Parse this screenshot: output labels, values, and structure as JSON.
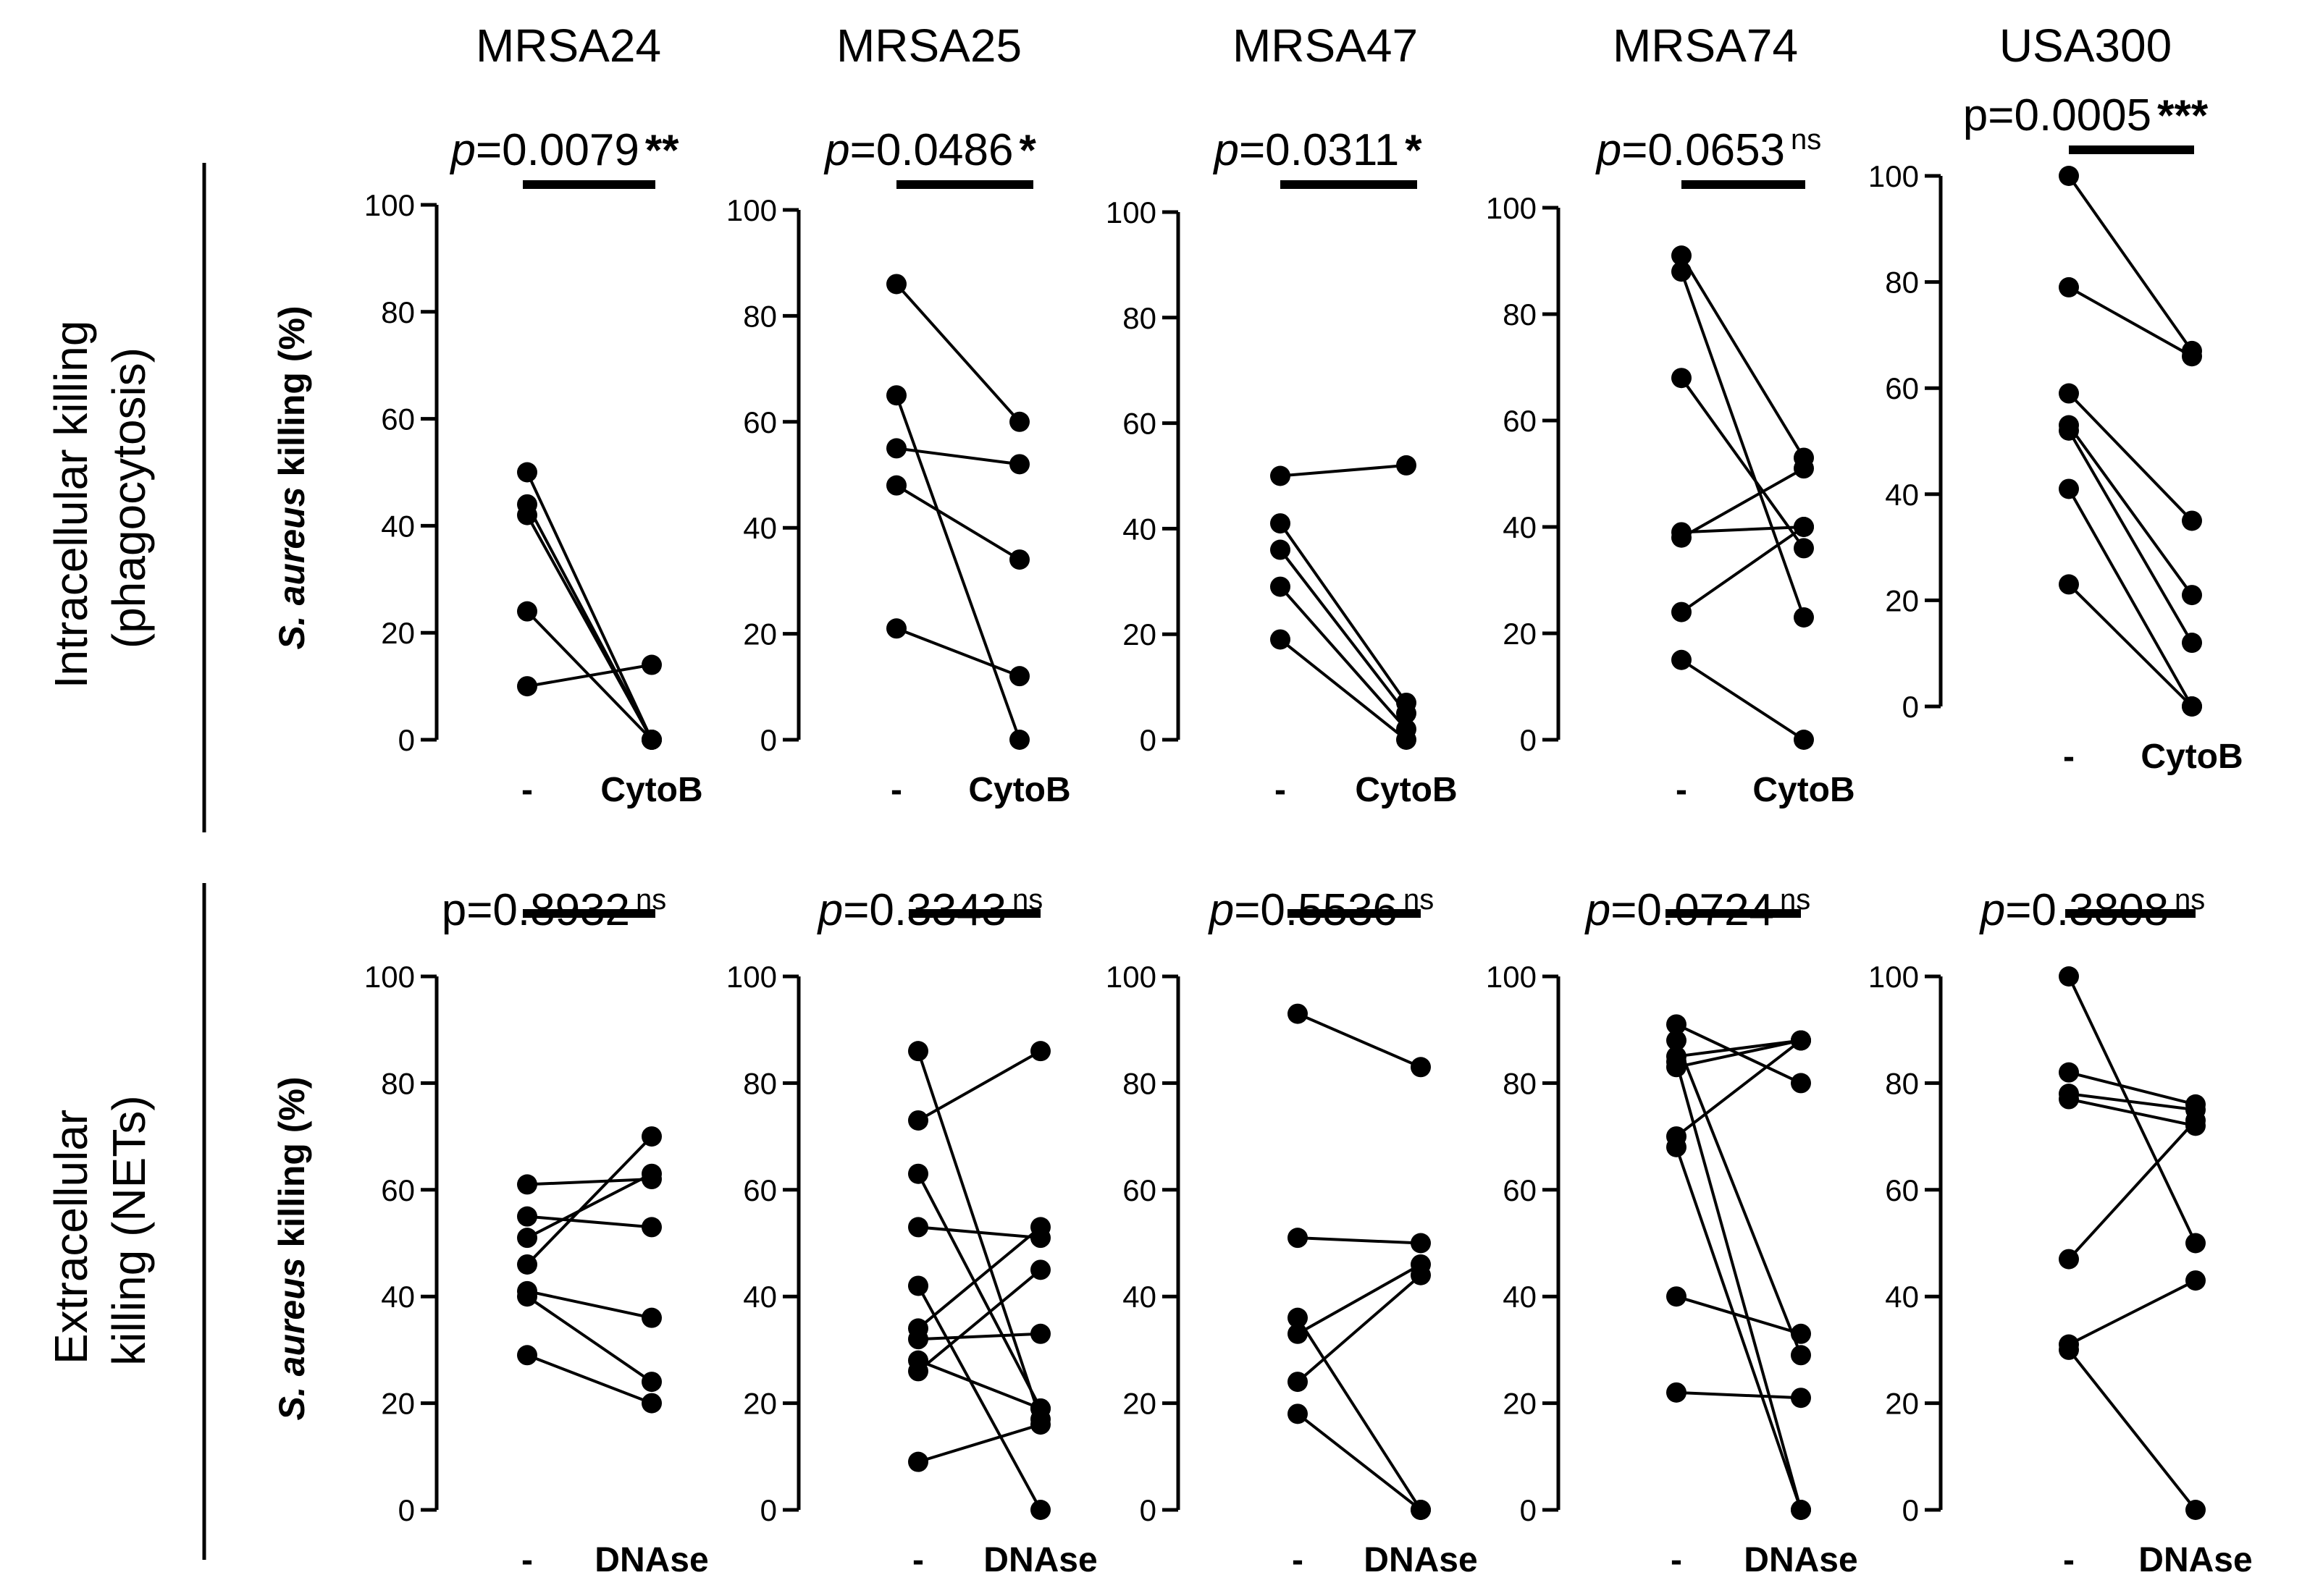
{
  "figure": {
    "strains": [
      "MRSA24",
      "MRSA25",
      "MRSA47",
      "MRSA74",
      "USA300"
    ],
    "rows": [
      {
        "row_label_lines": [
          "Intracellular killing",
          "(phagocytosis)"
        ],
        "y_axis_label": {
          "italic": "S. aureus",
          "rest": " killing (%)"
        },
        "treatment": "CytoB"
      },
      {
        "row_label_lines": [
          "Extracellular",
          "killing (NETs)"
        ],
        "y_axis_label": {
          "italic": "S. aureus",
          "rest": " killing  (%)"
        },
        "treatment": "DNAse"
      }
    ]
  },
  "chart_data": [
    {
      "type": "scatter",
      "subtype": "paired-dot",
      "strain": "MRSA24",
      "row": "Intracellular killing (phagocytosis)",
      "categories": [
        "-",
        "CytoB"
      ],
      "ylabel": "S. aureus killing (%)",
      "ylim": [
        0,
        100
      ],
      "yticks": [
        0,
        20,
        40,
        60,
        80,
        100
      ],
      "p_prefix": "p",
      "p_value": "=0.0079",
      "significance": "**",
      "p_italic": true,
      "pairs": [
        [
          50,
          0
        ],
        [
          44,
          0
        ],
        [
          42,
          0
        ],
        [
          24,
          0
        ],
        [
          10,
          14
        ]
      ]
    },
    {
      "type": "scatter",
      "subtype": "paired-dot",
      "strain": "MRSA25",
      "row": "Intracellular killing (phagocytosis)",
      "categories": [
        "-",
        "CytoB"
      ],
      "ylabel": "S. aureus killing (%)",
      "ylim": [
        0,
        100
      ],
      "yticks": [
        0,
        20,
        40,
        60,
        80,
        100
      ],
      "p_prefix": "p",
      "p_value": "=0.0486",
      "significance": "*",
      "p_italic": true,
      "pairs": [
        [
          86,
          60
        ],
        [
          65,
          0
        ],
        [
          55,
          52
        ],
        [
          48,
          34
        ],
        [
          21,
          12
        ]
      ]
    },
    {
      "type": "scatter",
      "subtype": "paired-dot",
      "strain": "MRSA47",
      "row": "Intracellular killing (phagocytosis)",
      "categories": [
        "-",
        "CytoB"
      ],
      "ylabel": "S. aureus killing (%)",
      "ylim": [
        0,
        100
      ],
      "yticks": [
        0,
        20,
        40,
        60,
        80,
        100
      ],
      "p_prefix": "p",
      "p_value": "=0.0311",
      "significance": "*",
      "p_italic": true,
      "pairs": [
        [
          50,
          52
        ],
        [
          41,
          7
        ],
        [
          36,
          5
        ],
        [
          29,
          2
        ],
        [
          19,
          0
        ]
      ]
    },
    {
      "type": "scatter",
      "subtype": "paired-dot",
      "strain": "MRSA74",
      "row": "Intracellular killing (phagocytosis)",
      "categories": [
        "-",
        "CytoB"
      ],
      "ylabel": "S. aureus killing (%)",
      "ylim": [
        0,
        100
      ],
      "yticks": [
        0,
        20,
        40,
        60,
        80,
        100
      ],
      "p_prefix": "p",
      "p_value": "=0.0653",
      "significance": "ns",
      "p_italic": true,
      "pairs": [
        [
          91,
          53
        ],
        [
          88,
          23
        ],
        [
          68,
          36
        ],
        [
          39,
          40
        ],
        [
          38,
          51
        ],
        [
          24,
          40
        ],
        [
          15,
          0
        ]
      ]
    },
    {
      "type": "scatter",
      "subtype": "paired-dot",
      "strain": "USA300",
      "row": "Intracellular killing (phagocytosis)",
      "categories": [
        "-",
        "CytoB"
      ],
      "ylabel": "S. aureus killing (%)",
      "ylim": [
        0,
        100
      ],
      "yticks": [
        0,
        20,
        40,
        60,
        80,
        100
      ],
      "p_prefix": "p",
      "p_value": "=0.0005",
      "significance": "***",
      "p_italic": false,
      "pairs": [
        [
          100,
          67
        ],
        [
          79,
          66
        ],
        [
          59,
          35
        ],
        [
          53,
          21
        ],
        [
          52,
          12
        ],
        [
          41,
          0
        ],
        [
          23,
          0
        ]
      ]
    },
    {
      "type": "scatter",
      "subtype": "paired-dot",
      "strain": "MRSA24",
      "row": "Extracellular killing (NETs)",
      "categories": [
        "-",
        "DNAse"
      ],
      "ylabel": "S. aureus killing (%)",
      "ylim": [
        0,
        100
      ],
      "yticks": [
        0,
        20,
        40,
        60,
        80,
        100
      ],
      "p_prefix": "p",
      "p_value": "=0.8932",
      "significance": "ns",
      "p_italic": false,
      "pairs": [
        [
          61,
          62
        ],
        [
          55,
          53
        ],
        [
          51,
          63
        ],
        [
          46,
          70
        ],
        [
          41,
          36
        ],
        [
          40,
          24
        ],
        [
          29,
          20
        ]
      ]
    },
    {
      "type": "scatter",
      "subtype": "paired-dot",
      "strain": "MRSA25",
      "row": "Extracellular killing (NETs)",
      "categories": [
        "-",
        "DNAse"
      ],
      "ylabel": "S. aureus killing (%)",
      "ylim": [
        0,
        100
      ],
      "yticks": [
        0,
        20,
        40,
        60,
        80,
        100
      ],
      "p_prefix": "p",
      "p_value": "=0.3343",
      "significance": "ns",
      "p_italic": true,
      "pairs": [
        [
          86,
          17
        ],
        [
          73,
          86
        ],
        [
          63,
          19
        ],
        [
          53,
          51
        ],
        [
          42,
          0
        ],
        [
          34,
          53
        ],
        [
          32,
          33
        ],
        [
          28,
          19
        ],
        [
          26,
          45
        ],
        [
          9,
          16
        ]
      ]
    },
    {
      "type": "scatter",
      "subtype": "paired-dot",
      "strain": "MRSA47",
      "row": "Extracellular killing (NETs)",
      "categories": [
        "-",
        "DNAse"
      ],
      "ylabel": "S. aureus killing (%)",
      "ylim": [
        0,
        100
      ],
      "yticks": [
        0,
        20,
        40,
        60,
        80,
        100
      ],
      "p_prefix": "p",
      "p_value": "=0.5536",
      "significance": "ns",
      "p_italic": true,
      "pairs": [
        [
          93,
          83
        ],
        [
          51,
          50
        ],
        [
          36,
          0
        ],
        [
          33,
          46
        ],
        [
          24,
          44
        ],
        [
          18,
          0
        ]
      ]
    },
    {
      "type": "scatter",
      "subtype": "paired-dot",
      "strain": "MRSA74",
      "row": "Extracellular killing (NETs)",
      "categories": [
        "-",
        "DNAse"
      ],
      "ylabel": "S. aureus killing (%)",
      "ylim": [
        0,
        100
      ],
      "yticks": [
        0,
        20,
        40,
        60,
        80,
        100
      ],
      "p_prefix": "p",
      "p_value": "=0.0724",
      "significance": "ns",
      "p_italic": true,
      "pairs": [
        [
          91,
          80
        ],
        [
          88,
          29
        ],
        [
          85,
          88
        ],
        [
          84,
          0
        ],
        [
          83,
          88
        ],
        [
          70,
          88
        ],
        [
          68,
          0
        ],
        [
          40,
          33
        ],
        [
          22,
          21
        ]
      ]
    },
    {
      "type": "scatter",
      "subtype": "paired-dot",
      "strain": "USA300",
      "row": "Extracellular killing (NETs)",
      "categories": [
        "-",
        "DNAse"
      ],
      "ylabel": "S. aureus killing (%)",
      "ylim": [
        0,
        100
      ],
      "yticks": [
        0,
        20,
        40,
        60,
        80,
        100
      ],
      "p_prefix": "p",
      "p_value": "=0.3808",
      "significance": "ns",
      "p_italic": true,
      "pairs": [
        [
          100,
          50
        ],
        [
          82,
          76
        ],
        [
          78,
          75
        ],
        [
          77,
          72
        ],
        [
          47,
          73
        ],
        [
          31,
          43
        ],
        [
          30,
          0
        ]
      ]
    }
  ]
}
